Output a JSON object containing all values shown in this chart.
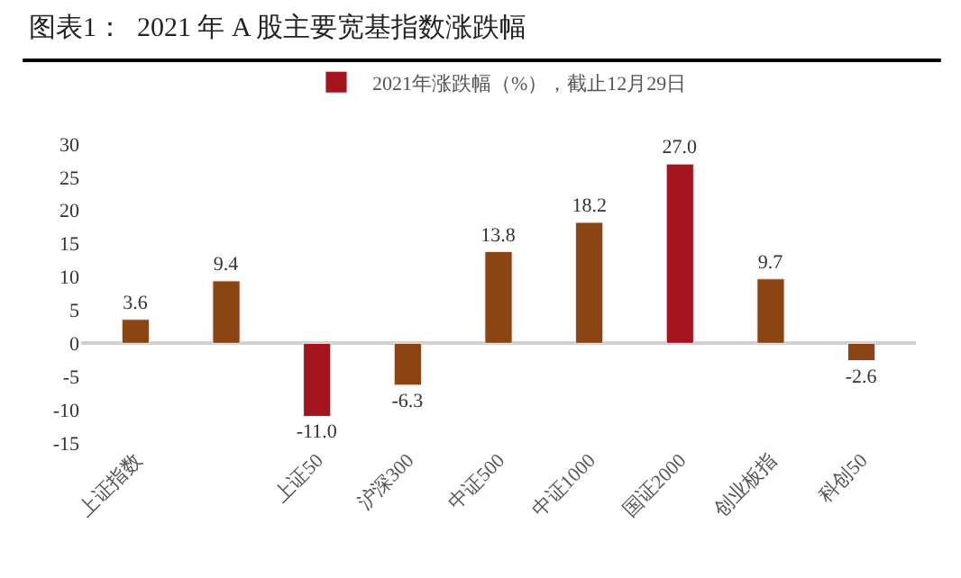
{
  "chart_data": {
    "type": "bar",
    "title": "图表1：  2021 年 A 股主要宽基指数涨跌幅",
    "categories": [
      "上证指数",
      null,
      "上证50",
      "沪深300",
      "中证500",
      "中证1000",
      "国证2000",
      "创业板指",
      "科创50"
    ],
    "series": [
      {
        "name": "2021年涨跌幅（%），截止12月29日",
        "color": "#a3141c",
        "values": [
          3.6,
          9.4,
          -11.0,
          -6.3,
          13.8,
          18.2,
          27.0,
          9.7,
          -2.6
        ],
        "value_labels": [
          "3.6",
          "9.4",
          "-11.0",
          "-6.3",
          "13.8",
          "18.2",
          "27.0",
          "9.7",
          "-2.6"
        ],
        "colors": [
          "#8b4513",
          "#8b4513",
          "#a3141c",
          "#8b4513",
          "#8b4513",
          "#8b4513",
          "#a3141c",
          "#8b4513",
          "#8b4513"
        ]
      }
    ],
    "ylim": [
      -15,
      30
    ],
    "yticks": [
      -15,
      -10,
      -5,
      0,
      5,
      10,
      15,
      20,
      25,
      30
    ],
    "legend": "top"
  }
}
